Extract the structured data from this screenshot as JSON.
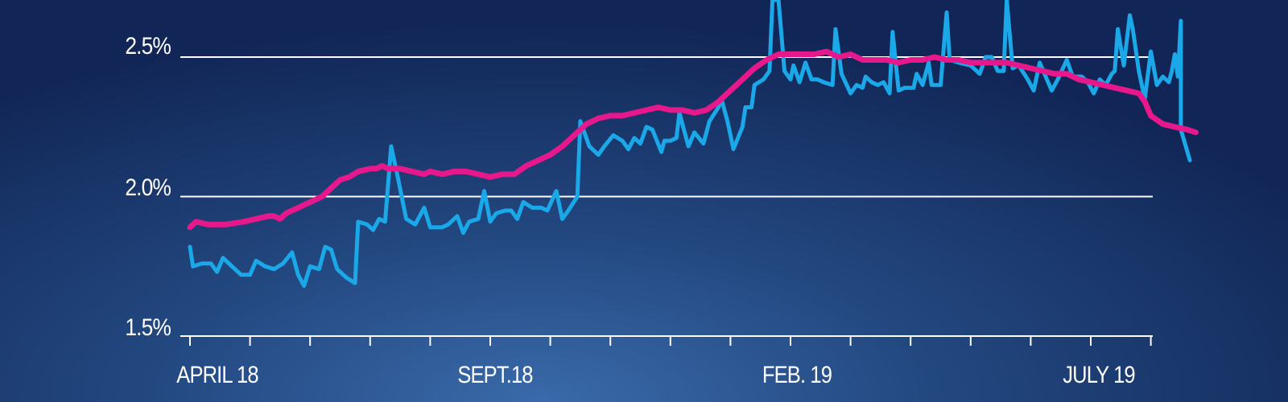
{
  "chart_data": {
    "type": "line",
    "x_tick_labels": [
      "APRIL 18",
      "SEPT.18",
      "FEB. 19",
      "JULY 19"
    ],
    "y_tick_labels": [
      "1.5%",
      "2.0%",
      "2.5%"
    ],
    "y_ticks": [
      1.5,
      2.0,
      2.5
    ],
    "ylim": [
      1.5,
      2.8
    ],
    "x_range_months": [
      0,
      16.2
    ],
    "x_tick_months": [
      0,
      5,
      10,
      15
    ],
    "minor_tick_months": [
      0,
      1,
      2,
      3,
      4,
      5,
      6,
      7,
      8,
      9,
      10,
      11,
      12,
      13,
      14,
      15,
      16
    ],
    "grid": true,
    "legend": "none",
    "colors": {
      "series1": "#1aa8e8",
      "series2": "#e6188c",
      "axis": "#ffffff"
    },
    "series": [
      {
        "values": [
          [
            0,
            1.82
          ],
          [
            0.05,
            1.75
          ],
          [
            0.2,
            1.76
          ],
          [
            0.35,
            1.76
          ],
          [
            0.45,
            1.73
          ],
          [
            0.55,
            1.78
          ],
          [
            0.7,
            1.75
          ],
          [
            0.85,
            1.72
          ],
          [
            1.0,
            1.72
          ],
          [
            1.1,
            1.77
          ],
          [
            1.25,
            1.75
          ],
          [
            1.4,
            1.74
          ],
          [
            1.55,
            1.76
          ],
          [
            1.7,
            1.8
          ],
          [
            1.8,
            1.72
          ],
          [
            1.9,
            1.68
          ],
          [
            2.0,
            1.75
          ],
          [
            2.15,
            1.74
          ],
          [
            2.25,
            1.82
          ],
          [
            2.35,
            1.81
          ],
          [
            2.45,
            1.74
          ],
          [
            2.6,
            1.71
          ],
          [
            2.75,
            1.69
          ],
          [
            2.8,
            1.91
          ],
          [
            2.95,
            1.9
          ],
          [
            3.05,
            1.88
          ],
          [
            3.15,
            1.92
          ],
          [
            3.25,
            1.91
          ],
          [
            3.35,
            2.18
          ],
          [
            3.45,
            2.08
          ],
          [
            3.6,
            1.92
          ],
          [
            3.75,
            1.9
          ],
          [
            3.9,
            1.96
          ],
          [
            4.0,
            1.89
          ],
          [
            4.2,
            1.89
          ],
          [
            4.3,
            1.9
          ],
          [
            4.45,
            1.93
          ],
          [
            4.55,
            1.87
          ],
          [
            4.65,
            1.91
          ],
          [
            4.8,
            1.92
          ],
          [
            4.9,
            2.02
          ],
          [
            5.0,
            1.91
          ],
          [
            5.1,
            1.94
          ],
          [
            5.25,
            1.95
          ],
          [
            5.35,
            1.95
          ],
          [
            5.45,
            1.92
          ],
          [
            5.55,
            1.98
          ],
          [
            5.7,
            1.96
          ],
          [
            5.85,
            1.96
          ],
          [
            5.95,
            1.95
          ],
          [
            6.1,
            2.02
          ],
          [
            6.2,
            1.92
          ],
          [
            6.3,
            1.95
          ],
          [
            6.45,
            2.0
          ],
          [
            6.5,
            2.27
          ],
          [
            6.65,
            2.18
          ],
          [
            6.8,
            2.15
          ],
          [
            6.9,
            2.18
          ],
          [
            7.05,
            2.22
          ],
          [
            7.2,
            2.2
          ],
          [
            7.3,
            2.17
          ],
          [
            7.4,
            2.21
          ],
          [
            7.5,
            2.19
          ],
          [
            7.6,
            2.25
          ],
          [
            7.7,
            2.24
          ],
          [
            7.85,
            2.16
          ],
          [
            7.9,
            2.2
          ],
          [
            8.0,
            2.2
          ],
          [
            8.1,
            2.21
          ],
          [
            8.15,
            2.3
          ],
          [
            8.3,
            2.18
          ],
          [
            8.4,
            2.23
          ],
          [
            8.55,
            2.19
          ],
          [
            8.65,
            2.27
          ],
          [
            8.8,
            2.32
          ],
          [
            8.85,
            2.35
          ],
          [
            8.95,
            2.27
          ],
          [
            9.05,
            2.17
          ],
          [
            9.2,
            2.25
          ],
          [
            9.25,
            2.32
          ],
          [
            9.35,
            2.32
          ],
          [
            9.4,
            2.4
          ],
          [
            9.55,
            2.42
          ],
          [
            9.65,
            2.45
          ],
          [
            9.7,
            2.8
          ],
          [
            9.8,
            2.8
          ],
          [
            9.9,
            2.45
          ],
          [
            10.0,
            2.42
          ],
          [
            10.05,
            2.47
          ],
          [
            10.15,
            2.41
          ],
          [
            10.25,
            2.48
          ],
          [
            10.35,
            2.42
          ],
          [
            10.45,
            2.42
          ],
          [
            10.55,
            2.41
          ],
          [
            10.7,
            2.4
          ],
          [
            10.75,
            2.6
          ],
          [
            10.85,
            2.44
          ],
          [
            11.0,
            2.37
          ],
          [
            11.1,
            2.4
          ],
          [
            11.2,
            2.39
          ],
          [
            11.25,
            2.43
          ],
          [
            11.35,
            2.41
          ],
          [
            11.45,
            2.4
          ],
          [
            11.55,
            2.41
          ],
          [
            11.65,
            2.37
          ],
          [
            11.7,
            2.59
          ],
          [
            11.8,
            2.38
          ],
          [
            11.9,
            2.39
          ],
          [
            12.05,
            2.39
          ],
          [
            12.1,
            2.44
          ],
          [
            12.2,
            2.4
          ],
          [
            12.3,
            2.48
          ],
          [
            12.35,
            2.4
          ],
          [
            12.5,
            2.4
          ],
          [
            12.6,
            2.66
          ],
          [
            12.65,
            2.49
          ],
          [
            12.8,
            2.48
          ],
          [
            13.0,
            2.47
          ],
          [
            13.15,
            2.44
          ],
          [
            13.25,
            2.5
          ],
          [
            13.35,
            2.5
          ],
          [
            13.45,
            2.45
          ],
          [
            13.55,
            2.45
          ],
          [
            13.6,
            2.8
          ],
          [
            13.7,
            2.46
          ],
          [
            13.8,
            2.47
          ],
          [
            13.95,
            2.42
          ],
          [
            14.05,
            2.38
          ],
          [
            14.15,
            2.48
          ],
          [
            14.25,
            2.43
          ],
          [
            14.35,
            2.38
          ],
          [
            14.45,
            2.42
          ],
          [
            14.6,
            2.49
          ],
          [
            14.7,
            2.43
          ],
          [
            14.85,
            2.43
          ],
          [
            14.95,
            2.41
          ],
          [
            15.05,
            2.37
          ],
          [
            15.15,
            2.42
          ],
          [
            15.25,
            2.4
          ],
          [
            15.35,
            2.44
          ],
          [
            15.4,
            2.45
          ],
          [
            15.45,
            2.6
          ],
          [
            15.55,
            2.47
          ],
          [
            15.65,
            2.65
          ],
          [
            15.7,
            2.6
          ],
          [
            15.8,
            2.45
          ],
          [
            15.9,
            2.35
          ],
          [
            16.0,
            2.52
          ],
          [
            16.1,
            2.4
          ],
          [
            16.2,
            2.43
          ],
          [
            16.25,
            2.42
          ],
          [
            16.3,
            2.41
          ],
          [
            16.35,
            2.45
          ],
          [
            16.4,
            2.51
          ],
          [
            16.45,
            2.43
          ],
          [
            16.5,
            2.63
          ],
          [
            16.5,
            2.24
          ],
          [
            16.65,
            2.13
          ]
        ]
      },
      {
        "values": [
          [
            0,
            1.89
          ],
          [
            0.1,
            1.91
          ],
          [
            0.3,
            1.9
          ],
          [
            0.6,
            1.9
          ],
          [
            0.9,
            1.91
          ],
          [
            1.1,
            1.92
          ],
          [
            1.3,
            1.93
          ],
          [
            1.4,
            1.93
          ],
          [
            1.5,
            1.92
          ],
          [
            1.6,
            1.94
          ],
          [
            1.8,
            1.96
          ],
          [
            2.0,
            1.98
          ],
          [
            2.2,
            2.0
          ],
          [
            2.35,
            2.03
          ],
          [
            2.5,
            2.06
          ],
          [
            2.65,
            2.07
          ],
          [
            2.8,
            2.09
          ],
          [
            3.0,
            2.1
          ],
          [
            3.1,
            2.1
          ],
          [
            3.2,
            2.11
          ],
          [
            3.3,
            2.1
          ],
          [
            3.5,
            2.1
          ],
          [
            3.7,
            2.09
          ],
          [
            3.9,
            2.08
          ],
          [
            4.0,
            2.09
          ],
          [
            4.2,
            2.08
          ],
          [
            4.4,
            2.09
          ],
          [
            4.6,
            2.09
          ],
          [
            4.8,
            2.08
          ],
          [
            5.0,
            2.07
          ],
          [
            5.2,
            2.08
          ],
          [
            5.4,
            2.08
          ],
          [
            5.6,
            2.11
          ],
          [
            5.8,
            2.13
          ],
          [
            6.0,
            2.15
          ],
          [
            6.2,
            2.18
          ],
          [
            6.4,
            2.22
          ],
          [
            6.6,
            2.26
          ],
          [
            6.8,
            2.28
          ],
          [
            7.0,
            2.29
          ],
          [
            7.2,
            2.29
          ],
          [
            7.4,
            2.3
          ],
          [
            7.6,
            2.31
          ],
          [
            7.8,
            2.32
          ],
          [
            8.0,
            2.31
          ],
          [
            8.2,
            2.31
          ],
          [
            8.4,
            2.3
          ],
          [
            8.6,
            2.31
          ],
          [
            8.8,
            2.34
          ],
          [
            9.0,
            2.38
          ],
          [
            9.2,
            2.42
          ],
          [
            9.4,
            2.46
          ],
          [
            9.6,
            2.49
          ],
          [
            9.8,
            2.51
          ],
          [
            10.0,
            2.51
          ],
          [
            10.2,
            2.51
          ],
          [
            10.4,
            2.51
          ],
          [
            10.6,
            2.52
          ],
          [
            10.8,
            2.5
          ],
          [
            11.0,
            2.51
          ],
          [
            11.2,
            2.49
          ],
          [
            11.4,
            2.49
          ],
          [
            11.6,
            2.49
          ],
          [
            11.8,
            2.48
          ],
          [
            12.0,
            2.49
          ],
          [
            12.2,
            2.49
          ],
          [
            12.4,
            2.5
          ],
          [
            12.6,
            2.49
          ],
          [
            12.8,
            2.49
          ],
          [
            13.0,
            2.48
          ],
          [
            13.2,
            2.48
          ],
          [
            13.4,
            2.48
          ],
          [
            13.6,
            2.48
          ],
          [
            13.8,
            2.47
          ],
          [
            14.0,
            2.46
          ],
          [
            14.2,
            2.45
          ],
          [
            14.4,
            2.44
          ],
          [
            14.6,
            2.44
          ],
          [
            14.8,
            2.42
          ],
          [
            15.0,
            2.41
          ],
          [
            15.2,
            2.4
          ],
          [
            15.4,
            2.39
          ],
          [
            15.6,
            2.38
          ],
          [
            15.8,
            2.37
          ],
          [
            15.9,
            2.34
          ],
          [
            16.0,
            2.29
          ],
          [
            16.2,
            2.26
          ],
          [
            16.4,
            2.25
          ],
          [
            16.6,
            2.24
          ],
          [
            16.75,
            2.23
          ]
        ]
      }
    ]
  }
}
